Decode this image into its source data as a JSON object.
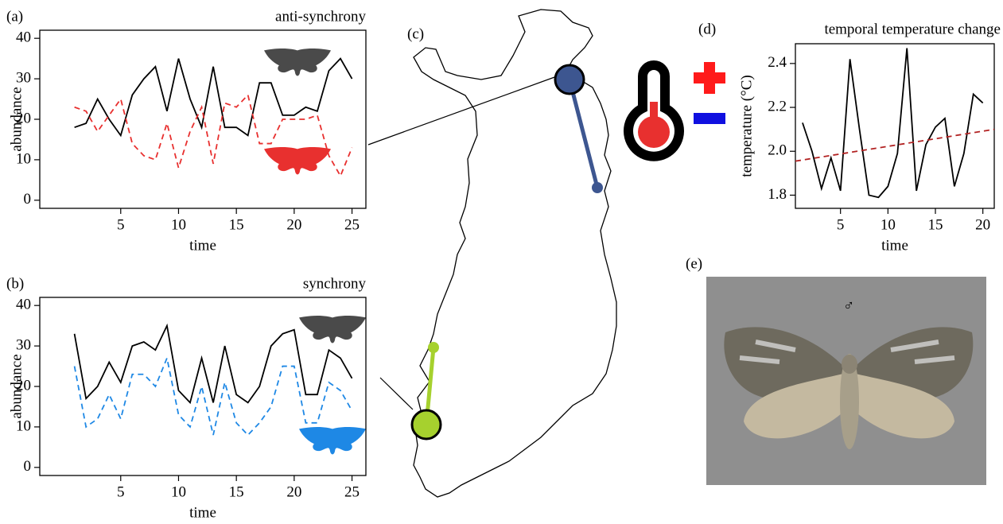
{
  "chart_data": [
    {
      "type": "line",
      "panel": "(a)",
      "title": "anti-synchrony",
      "xlabel": "time",
      "ylabel": "abundance",
      "x": [
        1,
        2,
        3,
        4,
        5,
        6,
        7,
        8,
        9,
        10,
        11,
        12,
        13,
        14,
        15,
        16,
        17,
        18,
        19,
        20,
        21,
        22,
        23,
        24,
        25
      ],
      "series": [
        {
          "color": "#000000",
          "style": "solid",
          "values": [
            18,
            19,
            25,
            20,
            16,
            26,
            30,
            33,
            22,
            35,
            25,
            18,
            33,
            18,
            18,
            16,
            29,
            29,
            21,
            21,
            23,
            22,
            32,
            35,
            30
          ]
        },
        {
          "color": "#e8302f",
          "style": "dashed",
          "values": [
            23,
            22,
            17,
            21,
            25,
            14,
            11,
            10,
            19,
            8,
            17,
            23,
            9,
            24,
            23,
            26,
            14,
            14,
            20,
            20,
            20,
            21,
            11,
            6,
            13
          ]
        }
      ],
      "xlim": [
        -2,
        26.2
      ],
      "ylim": [
        -2,
        42
      ],
      "xticks": [
        5,
        10,
        15,
        20,
        25
      ],
      "yticks": [
        0,
        10,
        20,
        30,
        40
      ]
    },
    {
      "type": "line",
      "panel": "(b)",
      "title": "synchrony",
      "xlabel": "time",
      "ylabel": "abundance",
      "x": [
        1,
        2,
        3,
        4,
        5,
        6,
        7,
        8,
        9,
        10,
        11,
        12,
        13,
        14,
        15,
        16,
        17,
        18,
        19,
        20,
        21,
        22,
        23,
        24,
        25
      ],
      "series": [
        {
          "color": "#000000",
          "style": "solid",
          "values": [
            33,
            17,
            20,
            26,
            21,
            30,
            31,
            29,
            35,
            19,
            16,
            27,
            16,
            30,
            18,
            16,
            20,
            30,
            33,
            34,
            18,
            18,
            29,
            27,
            22
          ]
        },
        {
          "color": "#1e88e5",
          "style": "dashed",
          "values": [
            25,
            10,
            12,
            18,
            12,
            23,
            23,
            20,
            27,
            13,
            10,
            20,
            8,
            21,
            11,
            8,
            11,
            15,
            25,
            25,
            11,
            11,
            21,
            19,
            14
          ]
        }
      ],
      "xlim": [
        -2,
        26.2
      ],
      "ylim": [
        -2,
        42
      ],
      "xticks": [
        5,
        10,
        15,
        20,
        25
      ],
      "yticks": [
        0,
        10,
        20,
        30,
        40
      ]
    },
    {
      "type": "line",
      "panel": "(d)",
      "title": "temporal temperature change",
      "xlabel": "time",
      "ylabel": "temperature (°C)",
      "x": [
        1,
        2,
        3,
        4,
        5,
        6,
        7,
        8,
        9,
        10,
        11,
        12,
        13,
        14,
        15,
        16,
        17,
        18,
        19,
        20
      ],
      "series": [
        {
          "color": "#000000",
          "style": "solid",
          "values": [
            2.13,
            2.0,
            1.83,
            1.97,
            1.82,
            2.42,
            2.1,
            1.8,
            1.79,
            1.84,
            1.99,
            2.47,
            1.82,
            2.03,
            2.11,
            2.15,
            1.84,
            1.99,
            2.26,
            2.22
          ]
        },
        {
          "color": "#b22222",
          "style": "dashed",
          "x": [
            0.25,
            21.2
          ],
          "values": [
            1.955,
            2.1
          ]
        }
      ],
      "xlim": [
        0.25,
        21.2
      ],
      "ylim": [
        1.74,
        2.49
      ],
      "xticks": [
        5,
        10,
        15,
        20
      ],
      "yticks": [
        1.8,
        {
          "value": 2,
          "label": "2.0"
        },
        2.2,
        2.4
      ]
    }
  ],
  "figure": {
    "map": {
      "panel": "(c)"
    },
    "photo": {
      "panel": "(e)",
      "symbol": "♂"
    }
  }
}
